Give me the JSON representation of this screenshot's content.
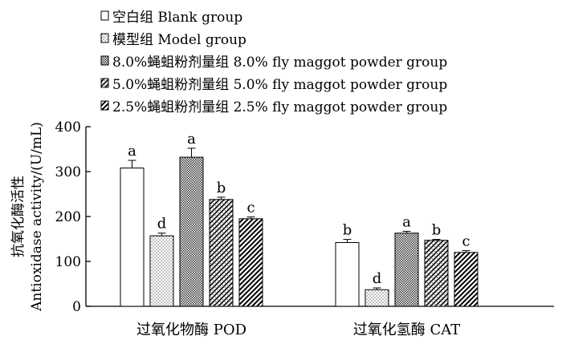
{
  "chart_data": {
    "type": "bar",
    "title": "",
    "ylabel_cn": "抗氧化酶活性",
    "ylabel_en": "Antioxidase activity/(U/mL)",
    "xlabel": "",
    "ylim": [
      0,
      400
    ],
    "yticks": [
      0,
      100,
      200,
      300,
      400
    ],
    "categories": [
      "过氧化物酶 POD",
      "过氧化氢酶 CAT"
    ],
    "legend_position": "top",
    "series": [
      {
        "name": "空白组 Blank group",
        "pattern": "none",
        "values": [
          308,
          142
        ],
        "errors": [
          17,
          7
        ],
        "labels": [
          "a",
          "b"
        ]
      },
      {
        "name": "模型组 Model group",
        "pattern": "dots",
        "values": [
          157,
          37
        ],
        "errors": [
          6,
          4
        ],
        "labels": [
          "d",
          "d"
        ]
      },
      {
        "name": "8.0%蝇蛆粉剂量组 8.0% fly maggot powder  group",
        "pattern": "crosshatch",
        "values": [
          332,
          163
        ],
        "errors": [
          20,
          4
        ],
        "labels": [
          "a",
          "a"
        ]
      },
      {
        "name": "5.0%蝇蛆粉剂量组 5.0% fly maggot powder  group",
        "pattern": "dense",
        "values": [
          238,
          147
        ],
        "errors": [
          5,
          2
        ],
        "labels": [
          "b",
          "b"
        ]
      },
      {
        "name": "2.5%蝇蛆粉剂量组 2.5% fly maggot powder  group",
        "pattern": "diagonal",
        "values": [
          195,
          120
        ],
        "errors": [
          4,
          4
        ],
        "labels": [
          "c",
          "c"
        ]
      }
    ]
  }
}
